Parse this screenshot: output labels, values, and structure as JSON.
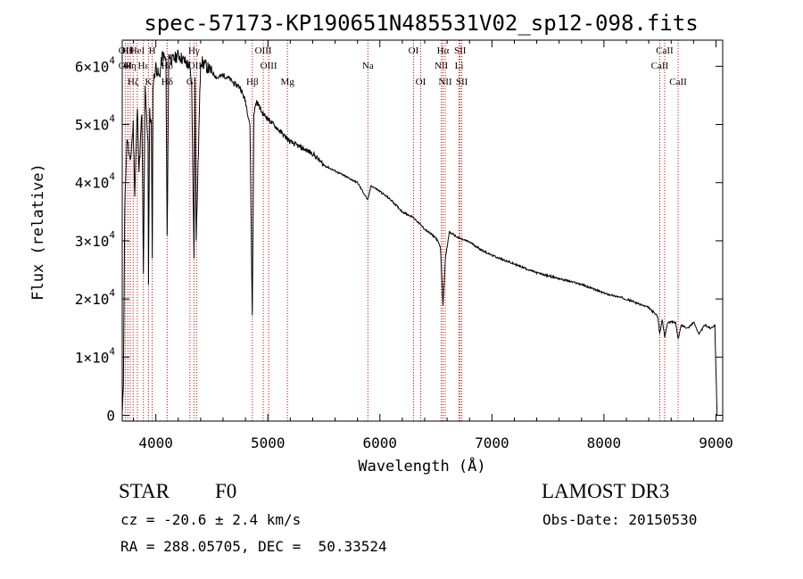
{
  "chart_data": {
    "type": "line",
    "title": "spec-57173-KP190651N485531V02_sp12-098.fits",
    "xlabel": "Wavelength (Å)",
    "ylabel": "Flux (relative)",
    "xlim": [
      3700,
      9060
    ],
    "ylim": [
      -1000,
      64500
    ],
    "xticks": [
      {
        "value": 4000,
        "label": "4000"
      },
      {
        "value": 5000,
        "label": "5000"
      },
      {
        "value": 6000,
        "label": "6000"
      },
      {
        "value": 7000,
        "label": "7000"
      },
      {
        "value": 8000,
        "label": "8000"
      },
      {
        "value": 9000,
        "label": "9000"
      }
    ],
    "yticks": [
      {
        "value": 0,
        "mantissa": "0",
        "exponent": ""
      },
      {
        "value": 10000,
        "mantissa": "1×10",
        "exponent": "4"
      },
      {
        "value": 20000,
        "mantissa": "2×10",
        "exponent": "4"
      },
      {
        "value": 30000,
        "mantissa": "3×10",
        "exponent": "4"
      },
      {
        "value": 40000,
        "mantissa": "4×10",
        "exponent": "4"
      },
      {
        "value": 50000,
        "mantissa": "5×10",
        "exponent": "4"
      },
      {
        "value": 60000,
        "mantissa": "6×10",
        "exponent": "4"
      }
    ],
    "line_color": "#000000",
    "marker_color": "#cc0000",
    "spectrum": {
      "name": "flux",
      "x": [
        3700,
        3710,
        3722,
        3735,
        3745,
        3770,
        3798,
        3812,
        3835,
        3850,
        3875,
        3889,
        3905,
        3930,
        3934,
        3945,
        3960,
        3968,
        3975,
        4000,
        4030,
        4060,
        4090,
        4101,
        4115,
        4150,
        4200,
        4250,
        4300,
        4320,
        4340,
        4350,
        4360,
        4400,
        4450,
        4500,
        4550,
        4600,
        4650,
        4700,
        4750,
        4800,
        4840,
        4861,
        4875,
        4900,
        4950,
        5000,
        5100,
        5200,
        5300,
        5400,
        5500,
        5600,
        5700,
        5800,
        5893,
        5920,
        6000,
        6100,
        6200,
        6300,
        6400,
        6500,
        6540,
        6563,
        6585,
        6620,
        6700,
        6800,
        6900,
        7000,
        7200,
        7400,
        7600,
        7800,
        8000,
        8200,
        8400,
        8480,
        8498,
        8520,
        8542,
        8570,
        8640,
        8662,
        8690,
        8750,
        8800,
        8850,
        8900,
        8950,
        8990,
        9010
      ],
      "y": [
        300,
        5000,
        35000,
        44000,
        48000,
        43000,
        50000,
        38000,
        53000,
        42000,
        52000,
        24000,
        56000,
        47000,
        23000,
        52000,
        50000,
        28000,
        57000,
        60000,
        58000,
        62000,
        61000,
        30000,
        62000,
        61000,
        62000,
        61000,
        60000,
        57000,
        27000,
        59000,
        30000,
        61000,
        60000,
        59000,
        58000,
        58500,
        58000,
        57000,
        56500,
        54000,
        50000,
        17000,
        52000,
        54000,
        52000,
        51000,
        49000,
        47000,
        46000,
        45000,
        43000,
        42000,
        41000,
        40000,
        37000,
        39500,
        38500,
        37000,
        35000,
        34000,
        32000,
        30500,
        29000,
        19000,
        27000,
        31500,
        30500,
        29800,
        28500,
        27500,
        26000,
        24500,
        23500,
        22500,
        21000,
        20000,
        18500,
        17000,
        14000,
        16500,
        13500,
        16000,
        16000,
        13000,
        15500,
        15000,
        16000,
        14000,
        15500,
        15000,
        15500,
        0
      ]
    },
    "line_markers": [
      {
        "x": 3727,
        "row": 0,
        "labels": [
          "OII",
          "OII"
        ]
      },
      {
        "x": 3750,
        "row": 0,
        "labels": [
          "Hθ"
        ]
      },
      {
        "x": 3771,
        "row": 1,
        "labels": [
          "Hη"
        ]
      },
      {
        "x": 3798,
        "row": 2,
        "labels": [
          "Hζ"
        ]
      },
      {
        "x": 3835,
        "row": 0,
        "labels": [
          "HeI"
        ]
      },
      {
        "x": 3889,
        "row": 1,
        "labels": [
          "Hε"
        ]
      },
      {
        "x": 3934,
        "row": 2,
        "labels": [
          "K"
        ]
      },
      {
        "x": 3968,
        "row": 0,
        "labels": [
          "H"
        ]
      },
      {
        "x": 4101,
        "row": 1,
        "labels": [
          "Hδ",
          "Hδ"
        ]
      },
      {
        "x": 4304,
        "row": 2,
        "labels": [
          "G"
        ]
      },
      {
        "x": 4340,
        "row": 0,
        "labels": [
          "Hγ"
        ]
      },
      {
        "x": 4363,
        "row": 1,
        "labels": [
          "OIII"
        ]
      },
      {
        "x": 4861,
        "row": 2,
        "labels": [
          "Hβ"
        ]
      },
      {
        "x": 4959,
        "row": 0,
        "labels": [
          "OIII"
        ]
      },
      {
        "x": 5007,
        "row": 1,
        "labels": [
          "OIII"
        ]
      },
      {
        "x": 5175,
        "row": 2,
        "labels": [
          "Mg"
        ]
      },
      {
        "x": 5893,
        "row": 1,
        "labels": [
          "Na"
        ]
      },
      {
        "x": 6300,
        "row": 0,
        "labels": [
          "OI"
        ]
      },
      {
        "x": 6364,
        "row": 2,
        "labels": [
          "OI"
        ]
      },
      {
        "x": 6548,
        "row": 1,
        "labels": [
          "NII"
        ]
      },
      {
        "x": 6563,
        "row": 0,
        "labels": [
          "Hα"
        ]
      },
      {
        "x": 6583,
        "row": 2,
        "labels": [
          "NII"
        ]
      },
      {
        "x": 6707,
        "row": 1,
        "labels": [
          "Li"
        ]
      },
      {
        "x": 6716,
        "row": 0,
        "labels": [
          "SII"
        ]
      },
      {
        "x": 6731,
        "row": 2,
        "labels": [
          "SII"
        ]
      },
      {
        "x": 8498,
        "row": 1,
        "labels": [
          "CaII"
        ]
      },
      {
        "x": 8542,
        "row": 0,
        "labels": [
          "CaII"
        ]
      },
      {
        "x": 8662,
        "row": 2,
        "labels": [
          "CaII"
        ]
      }
    ]
  },
  "info": {
    "object_class": "STAR",
    "subclass": "F0",
    "redshift_line": "cz = -20.6 ± 2.4 km/s",
    "coords_line": "RA = 288.05705, DEC =  50.33524",
    "survey": "LAMOST DR3",
    "obs_date_line": "Obs-Date: 20150530"
  }
}
